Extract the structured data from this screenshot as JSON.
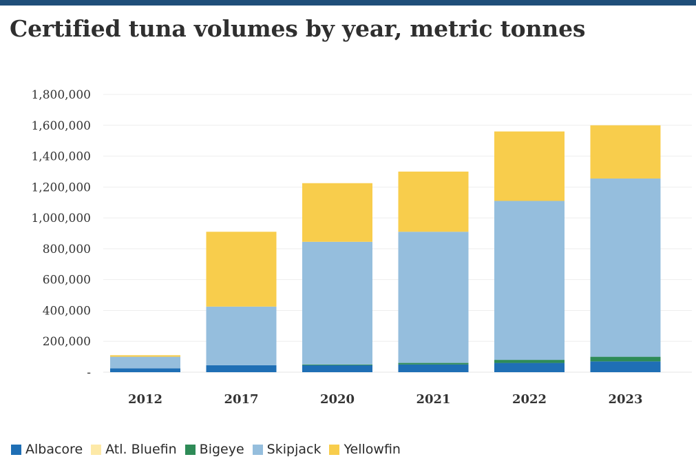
{
  "chart_data": {
    "type": "bar",
    "stacked": true,
    "title": "Certified tuna volumes by year, metric tonnes",
    "xlabel": "",
    "ylabel": "",
    "ylim": [
      0,
      1800000
    ],
    "yticks": [
      0,
      200000,
      400000,
      600000,
      800000,
      1000000,
      1200000,
      1400000,
      1600000,
      1800000
    ],
    "ytick_labels": [
      "-",
      "200,000",
      "400,000",
      "600,000",
      "800,000",
      "1,000,000",
      "1,200,000",
      "1,400,000",
      "1,600,000",
      "1,800,000"
    ],
    "categories": [
      "2012",
      "2017",
      "2020",
      "2021",
      "2022",
      "2023"
    ],
    "grid": true,
    "legend_position": "bottom",
    "series": [
      {
        "name": "Albacore",
        "color": "#1f6fb5",
        "values": [
          25000,
          45000,
          45000,
          50000,
          60000,
          70000
        ]
      },
      {
        "name": "Atl. Bluefin",
        "color": "#fde9a7",
        "values": [
          0,
          0,
          0,
          0,
          0,
          0
        ]
      },
      {
        "name": "Bigeye",
        "color": "#2e8b57",
        "values": [
          0,
          0,
          5000,
          10000,
          20000,
          30000
        ]
      },
      {
        "name": "Skipjack",
        "color": "#95bedd",
        "values": [
          75000,
          380000,
          795000,
          850000,
          1030000,
          1155000
        ]
      },
      {
        "name": "Yellowfin",
        "color": "#f8cd4c",
        "values": [
          10000,
          485000,
          380000,
          390000,
          450000,
          345000
        ]
      }
    ]
  }
}
